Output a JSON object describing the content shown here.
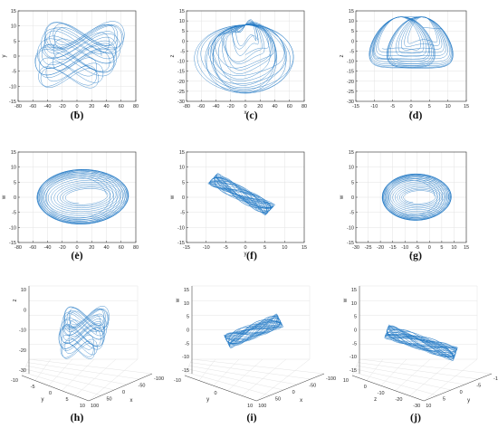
{
  "figure": {
    "line_color": "#1f77c4",
    "background": "#ffffff"
  },
  "chart_data": [
    {
      "id": "b",
      "type": "line",
      "caption": "(b)",
      "title": "",
      "xlabel": "x",
      "ylabel": "y",
      "xlim": [
        -80,
        80
      ],
      "ylim": [
        -15,
        15
      ],
      "xticks": [
        "-80",
        "-60",
        "-40",
        "-20",
        "0",
        "20",
        "40",
        "60",
        "80"
      ],
      "yticks": [
        "-15",
        "-10",
        "-5",
        "0",
        "5",
        "10",
        "15"
      ],
      "grid": true
    },
    {
      "id": "c",
      "type": "line",
      "caption": "(c)",
      "title": "",
      "xlabel": "x",
      "ylabel": "z",
      "xlim": [
        -80,
        80
      ],
      "ylim": [
        -30,
        15
      ],
      "xticks": [
        "-80",
        "-60",
        "-40",
        "-20",
        "0",
        "20",
        "40",
        "60",
        "80"
      ],
      "yticks": [
        "-30",
        "-25",
        "-20",
        "-15",
        "-10",
        "-5",
        "0",
        "5",
        "10",
        "15"
      ],
      "grid": true
    },
    {
      "id": "d",
      "type": "line",
      "caption": "(d)",
      "title": "",
      "xlabel": "y",
      "ylabel": "z",
      "xlim": [
        -15,
        15
      ],
      "ylim": [
        -30,
        15
      ],
      "xticks": [
        "-15",
        "-10",
        "-5",
        "0",
        "5",
        "10",
        "15"
      ],
      "yticks": [
        "-30",
        "-25",
        "-20",
        "-15",
        "-10",
        "-5",
        "0",
        "5",
        "10",
        "15"
      ],
      "grid": true
    },
    {
      "id": "e",
      "type": "line",
      "caption": "(e)",
      "title": "",
      "xlabel": "x",
      "ylabel": "w",
      "xlim": [
        -80,
        80
      ],
      "ylim": [
        -15,
        15
      ],
      "xticks": [
        "-80",
        "-60",
        "-40",
        "-20",
        "0",
        "20",
        "40",
        "60",
        "80"
      ],
      "yticks": [
        "-15",
        "-10",
        "-5",
        "0",
        "5",
        "10",
        "15"
      ],
      "grid": true
    },
    {
      "id": "f",
      "type": "line",
      "caption": "(f)",
      "title": "",
      "xlabel": "y",
      "ylabel": "w",
      "xlim": [
        -15,
        15
      ],
      "ylim": [
        -15,
        15
      ],
      "xticks": [
        "-15",
        "-10",
        "-5",
        "0",
        "5",
        "10",
        "15"
      ],
      "yticks": [
        "-15",
        "-10",
        "-5",
        "0",
        "5",
        "10",
        "15"
      ],
      "grid": true
    },
    {
      "id": "g",
      "type": "line",
      "caption": "(g)",
      "title": "",
      "xlabel": "z",
      "ylabel": "w",
      "xlim": [
        -30,
        15
      ],
      "ylim": [
        -15,
        15
      ],
      "xticks": [
        "-30",
        "-25",
        "-20",
        "-15",
        "-10",
        "-5",
        "0",
        "5",
        "10",
        "15"
      ],
      "yticks": [
        "-15",
        "-10",
        "-5",
        "0",
        "5",
        "10",
        "15"
      ],
      "grid": true
    },
    {
      "id": "h",
      "type": "line",
      "caption": "(h)",
      "title": "",
      "xlabel": "x",
      "ylabel": "y",
      "zlabel": "z",
      "projection": "3d",
      "xticks": [
        "100",
        "50",
        "0",
        "-50",
        "-100"
      ],
      "yticks": [
        "-10",
        "-5",
        "0",
        "5",
        "10"
      ],
      "zticks": [
        "-30",
        "-20",
        "-10",
        "0",
        "10"
      ],
      "grid": true
    },
    {
      "id": "i",
      "type": "line",
      "caption": "(i)",
      "title": "",
      "xlabel": "x",
      "ylabel": "y",
      "zlabel": "w",
      "projection": "3d",
      "xticks": [
        "100",
        "50",
        "0",
        "-50",
        "-100"
      ],
      "yticks": [
        "-10",
        "0",
        "10"
      ],
      "zticks": [
        "-15",
        "-10",
        "-5",
        "0",
        "5",
        "10",
        "15"
      ],
      "grid": true
    },
    {
      "id": "j",
      "type": "line",
      "caption": "(j)",
      "title": "",
      "xlabel": "y",
      "ylabel": "z",
      "zlabel": "w",
      "projection": "3d",
      "xticks": [
        "10",
        "5",
        "0",
        "-5",
        "-10"
      ],
      "yticks": [
        "10",
        "0",
        "-10",
        "-20",
        "-30"
      ],
      "zticks": [
        "-15",
        "-10",
        "-5",
        "0",
        "5",
        "10",
        "15"
      ],
      "grid": true
    }
  ]
}
